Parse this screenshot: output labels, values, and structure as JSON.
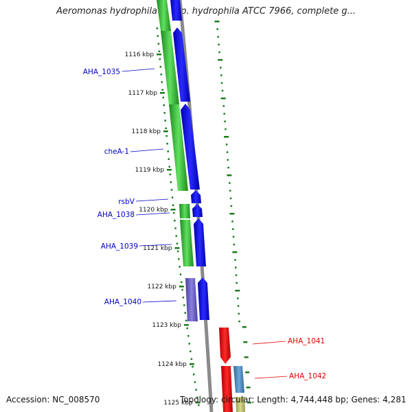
{
  "title": "Aeromonas hydrophila subsp. hydrophila ATCC 7966, complete g...",
  "accession": "Accession: NC_008570",
  "summary": "Topology: circular; Length: 4,744,448 bp; Genes: 4,281",
  "ticks": [
    "1116 kbp",
    "1117 kbp",
    "1118 kbp",
    "1119 kbp",
    "1120 kbp",
    "1121 kbp",
    "1122 kbp",
    "1123 kbp",
    "1124 kbp",
    "1125 kbp"
  ],
  "gene_labels": [
    {
      "text": "AHA_1035",
      "strand": "forward"
    },
    {
      "text": "cheA-1",
      "strand": "forward"
    },
    {
      "text": "rsbV",
      "strand": "forward"
    },
    {
      "text": "AHA_1038",
      "strand": "forward"
    },
    {
      "text": "AHA_1039",
      "strand": "forward"
    },
    {
      "text": "AHA_1040",
      "strand": "forward"
    },
    {
      "text": "AHA_1041",
      "strand": "reverse"
    },
    {
      "text": "AHA_1042",
      "strand": "reverse"
    }
  ],
  "colors": {
    "forward_label": "#0000c8",
    "reverse_label": "#e00000",
    "cds_forward": "#0000ee",
    "gene_forward": "#2db82d",
    "gene_other": "#6a5fc0",
    "cds_reverse": "#ee0000",
    "gene_reverse": "#4b86b8",
    "backbone": "#8a8a8a",
    "tick_mark": "#1a7a1a"
  }
}
